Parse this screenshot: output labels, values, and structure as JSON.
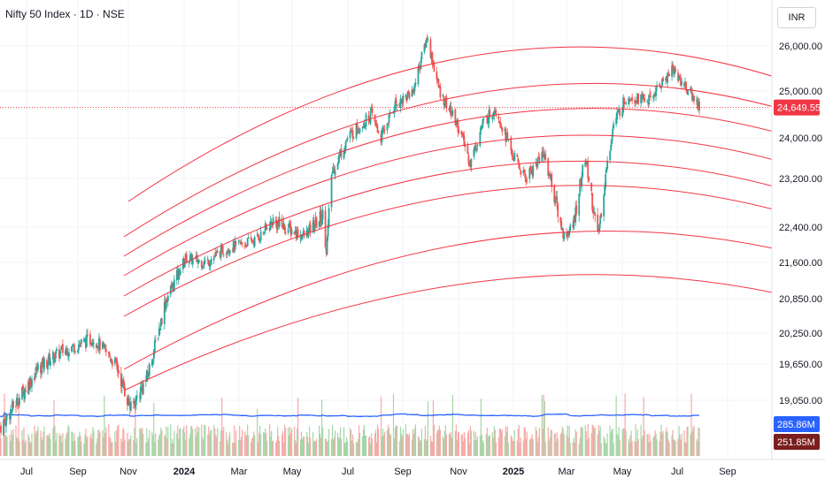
{
  "header": {
    "title": "Nifty 50 Index · 1D · NSE",
    "currency": "INR"
  },
  "colors": {
    "up": "#26a69a",
    "down": "#ef5350",
    "arc": "#f23645",
    "ma": "#2962ff",
    "vol_up": "#a5d6a7",
    "vol_down": "#f7a9a7",
    "last_price_bg": "#f23645",
    "vol_ma_bg": "#2962ff",
    "vol_bg": "#7b1e1e"
  },
  "chart_data": {
    "type": "candlestick",
    "instrument": "Nifty 50 Index",
    "interval": "1D",
    "exchange": "NSE",
    "currency": "INR",
    "y_ticks": [
      "26,000.00",
      "25,000.00",
      "24,000.00",
      "23,200.00",
      "22,400.00",
      "21,600.00",
      "20,850.00",
      "20,250.00",
      "19,650.00",
      "19,050.00"
    ],
    "x_ticks": [
      {
        "label": "Jul",
        "bold": false
      },
      {
        "label": "Sep",
        "bold": false
      },
      {
        "label": "Nov",
        "bold": false
      },
      {
        "label": "2024",
        "bold": true
      },
      {
        "label": "Mar",
        "bold": false
      },
      {
        "label": "May",
        "bold": false
      },
      {
        "label": "Jul",
        "bold": false
      },
      {
        "label": "Sep",
        "bold": false
      },
      {
        "label": "Nov",
        "bold": false
      },
      {
        "label": "2025",
        "bold": true
      },
      {
        "label": "Mar",
        "bold": false
      },
      {
        "label": "May",
        "bold": false
      },
      {
        "label": "Jul",
        "bold": false
      },
      {
        "label": "Sep",
        "bold": false
      }
    ],
    "price_path": [
      [
        "2023-06-01",
        18600
      ],
      [
        "2023-07-15",
        19600
      ],
      [
        "2023-08-10",
        19900
      ],
      [
        "2023-09-15",
        20150
      ],
      [
        "2023-10-10",
        19650
      ],
      [
        "2023-10-27",
        18900
      ],
      [
        "2023-11-15",
        19450
      ],
      [
        "2023-12-05",
        20800
      ],
      [
        "2023-12-28",
        21700
      ],
      [
        "2024-01-20",
        21600
      ],
      [
        "2024-02-10",
        21900
      ],
      [
        "2024-03-15",
        22100
      ],
      [
        "2024-04-05",
        22500
      ],
      [
        "2024-05-10",
        22200
      ],
      [
        "2024-05-31",
        22600
      ],
      [
        "2024-06-04",
        21900
      ],
      [
        "2024-06-10",
        23300
      ],
      [
        "2024-06-28",
        24000
      ],
      [
        "2024-07-25",
        24500
      ],
      [
        "2024-08-05",
        24000
      ],
      [
        "2024-08-20",
        24700
      ],
      [
        "2024-09-10",
        25000
      ],
      [
        "2024-09-26",
        26200
      ],
      [
        "2024-10-10",
        25000
      ],
      [
        "2024-10-30",
        24300
      ],
      [
        "2024-11-14",
        23500
      ],
      [
        "2024-11-28",
        24300
      ],
      [
        "2024-12-12",
        24650
      ],
      [
        "2024-12-31",
        23700
      ],
      [
        "2025-01-15",
        23200
      ],
      [
        "2025-02-05",
        23700
      ],
      [
        "2025-02-28",
        22200
      ],
      [
        "2025-03-10",
        22400
      ],
      [
        "2025-03-24",
        23600
      ],
      [
        "2025-04-07",
        22200
      ],
      [
        "2025-04-25",
        24300
      ],
      [
        "2025-05-10",
        24900
      ],
      [
        "2025-06-05",
        24800
      ],
      [
        "2025-06-30",
        25500
      ],
      [
        "2025-07-15",
        25100
      ],
      [
        "2025-08-01",
        24650
      ]
    ],
    "last_price": "24,649.55",
    "volume_ma": "285.86M",
    "volume": "251.85M"
  }
}
